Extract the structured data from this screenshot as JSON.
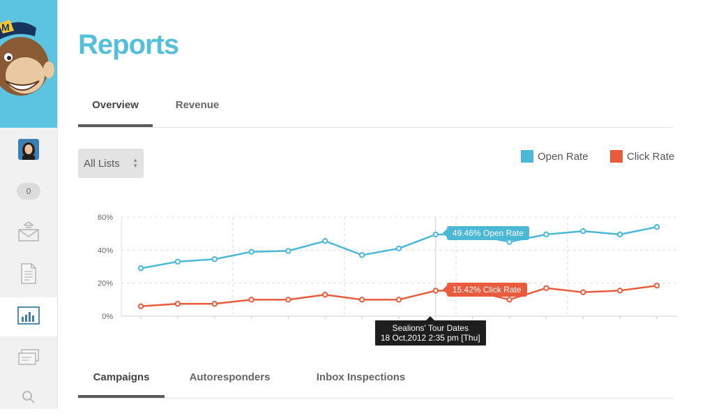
{
  "page": {
    "title": "Reports"
  },
  "sidebar": {
    "badge_count": "0",
    "items": [
      {
        "name": "avatar"
      },
      {
        "name": "badge"
      },
      {
        "name": "campaigns",
        "icon": "envelope-icon"
      },
      {
        "name": "templates",
        "icon": "document-icon"
      },
      {
        "name": "reports",
        "icon": "bar-chart-icon",
        "active": true
      },
      {
        "name": "lists",
        "icon": "stack-icon"
      },
      {
        "name": "search",
        "icon": "search-icon"
      }
    ]
  },
  "tabs": [
    {
      "label": "Overview",
      "active": true
    },
    {
      "label": "Revenue",
      "active": false
    }
  ],
  "list_select": {
    "value": "All Lists"
  },
  "legend": [
    {
      "label": "Open Rate",
      "color": "#4bb8d6"
    },
    {
      "label": "Click Rate",
      "color": "#e85c3d"
    }
  ],
  "chart_data": {
    "type": "line",
    "x": [
      1,
      2,
      3,
      4,
      5,
      6,
      7,
      8,
      9,
      10,
      11,
      12,
      13,
      14,
      15
    ],
    "series": [
      {
        "name": "Open Rate",
        "color": "#4bb8d6",
        "values": [
          29,
          33,
          34.5,
          39,
          39.5,
          45.5,
          37,
          41,
          49.46,
          49.5,
          45,
          49.5,
          51.5,
          49.5,
          54
        ]
      },
      {
        "name": "Click Rate",
        "color": "#e85c3d",
        "values": [
          6,
          7.5,
          7.5,
          10,
          10,
          13,
          10,
          10,
          15.42,
          15.4,
          10,
          17,
          14.5,
          15.5,
          18.5
        ]
      }
    ],
    "yticks": [
      "0%",
      "20%",
      "40%",
      "60%"
    ],
    "ylim": [
      0,
      60
    ],
    "grid": true,
    "highlight_index": 8,
    "open_label": "49.46% Open Rate",
    "click_label": "15.42% Click Rate",
    "tooltip_title": "Sealions' Tour Dates",
    "tooltip_date": "18 Oct,2012 2:35 pm [Thu]"
  },
  "bottom_tabs": [
    {
      "label": "Campaigns",
      "active": true
    },
    {
      "label": "Autoresponders",
      "active": false
    },
    {
      "label": "Inbox Inspections",
      "active": false
    }
  ]
}
